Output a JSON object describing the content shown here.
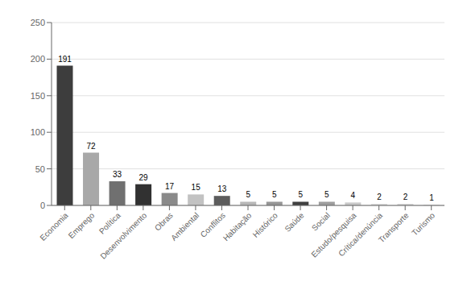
{
  "chart_data": {
    "type": "bar",
    "categories": [
      "Economia",
      "Emprego",
      "Política",
      "Desenvolvimento",
      "Obras",
      "Ambiental",
      "Conflitos",
      "Habitação",
      "Histórico",
      "Saúde",
      "Social",
      "Estudo/pesquisa",
      "Crítica/denúncia",
      "Transporte",
      "Turismo"
    ],
    "values": [
      191,
      72,
      33,
      29,
      17,
      15,
      13,
      5,
      5,
      5,
      5,
      4,
      2,
      2,
      1
    ],
    "colors": [
      "#3d3d3d",
      "#a8a8a8",
      "#707070",
      "#313131",
      "#8a8a8a",
      "#c2c2c2",
      "#5c5c5c",
      "#b8b8b8",
      "#969696",
      "#404040",
      "#9e9e9e",
      "#c9c9c9",
      "#d5d5d5",
      "#cecece",
      "#d2d2d2"
    ],
    "ylim": [
      0,
      250
    ],
    "yticks": [
      0,
      50,
      100,
      150,
      200,
      250
    ],
    "grid": true,
    "data_labels": true
  }
}
